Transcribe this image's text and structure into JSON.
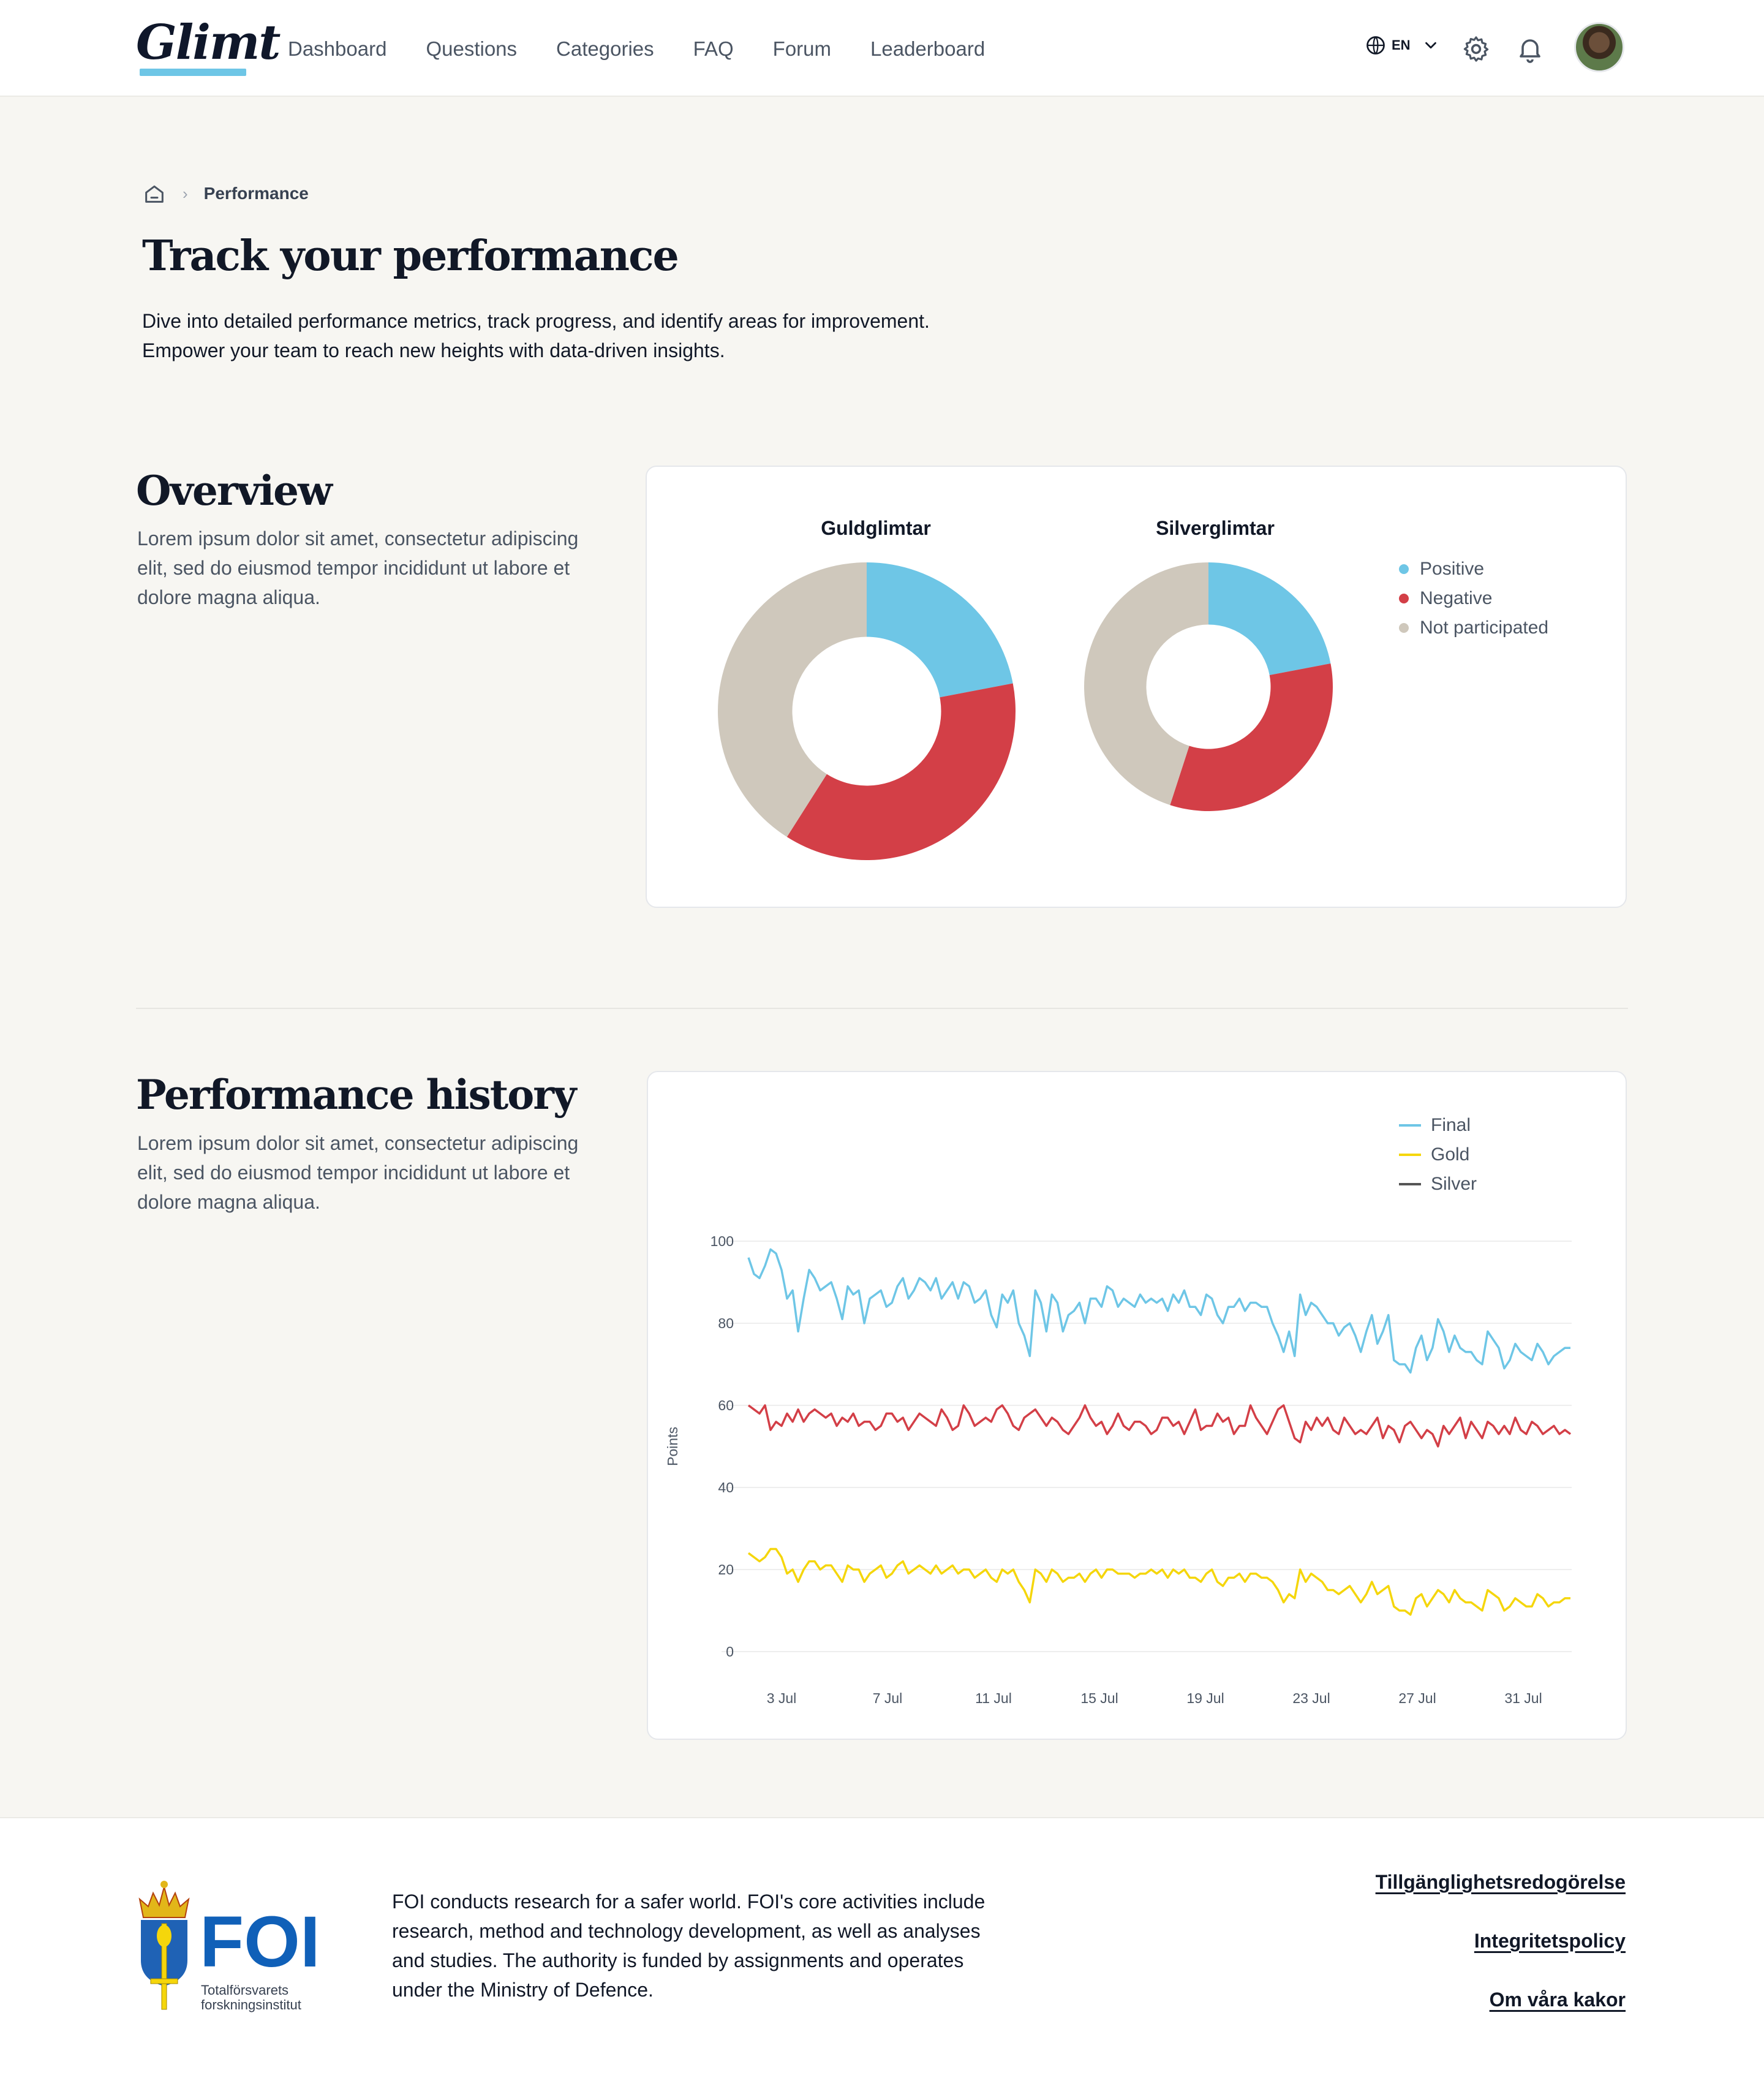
{
  "header": {
    "logo": "Glimt",
    "nav": [
      "Dashboard",
      "Questions",
      "Categories",
      "FAQ",
      "Forum",
      "Leaderboard"
    ],
    "language": "EN",
    "icons": [
      "globe-icon",
      "chevron-down-icon",
      "gear-icon",
      "bell-icon",
      "avatar"
    ]
  },
  "breadcrumb": {
    "current": "Performance"
  },
  "intro": {
    "title": "Track your performance",
    "description": "Dive into detailed performance metrics, track progress, and identify areas for improvement. Empower your team to reach new heights with data-driven insights."
  },
  "overview": {
    "title": "Overview",
    "description": "Lorem ipsum dolor sit amet, consectetur adipiscing elit, sed do eiusmod tempor incididunt ut labore et dolore magna aliqua."
  },
  "history": {
    "title": "Performance history",
    "description": "Lorem ipsum dolor sit amet, consectetur adipiscing elit, sed do eiusmod tempor incididunt ut labore et dolore magna aliqua."
  },
  "colors": {
    "positive": "#6ec6e6",
    "negative": "#d33f47",
    "not_participated": "#cfc8bc",
    "final": "#6ec6e6",
    "gold": "#f5d60b",
    "silver": "#d33f47"
  },
  "chart_data": [
    {
      "type": "pie",
      "title": "Guldglimtar",
      "categories": [
        "Positive",
        "Negative",
        "Not participated"
      ],
      "values": [
        22,
        37,
        41
      ],
      "legend_position": "right"
    },
    {
      "type": "pie",
      "title": "Silverglimtar",
      "categories": [
        "Positive",
        "Negative",
        "Not participated"
      ],
      "values": [
        22,
        33,
        45
      ],
      "legend_position": "right"
    },
    {
      "type": "line",
      "title": "",
      "xlabel": "",
      "ylabel": "Points",
      "ylim": [
        0,
        100
      ],
      "yticks": [
        0,
        20,
        40,
        60,
        80,
        100
      ],
      "xticks": [
        "3 Jul",
        "7 Jul",
        "11 Jul",
        "15 Jul",
        "19 Jul",
        "23 Jul",
        "27 Jul",
        "31 Jul"
      ],
      "grid": true,
      "legend_position": "top-right",
      "series": [
        {
          "name": "Final",
          "values": [
            96,
            92,
            91,
            94,
            98,
            97,
            93,
            86,
            88,
            78,
            86,
            93,
            91,
            88,
            89,
            90,
            86,
            81,
            89,
            87,
            88,
            80,
            86,
            87,
            88,
            84,
            85,
            89,
            91,
            86,
            88,
            91,
            90,
            88,
            91,
            86,
            88,
            90,
            86,
            90,
            89,
            85,
            86,
            88,
            82,
            79,
            87,
            85,
            88,
            80,
            77,
            72,
            88,
            85,
            78,
            87,
            85,
            78,
            82,
            83,
            85,
            80,
            86,
            86,
            84,
            89,
            88,
            84,
            86,
            85,
            84,
            87,
            85,
            86,
            85,
            86,
            83,
            87,
            85,
            88,
            84,
            84,
            82,
            87,
            86,
            82,
            80,
            84,
            84,
            86,
            83,
            85,
            85,
            84,
            84,
            80,
            77,
            73,
            78,
            72,
            87,
            82,
            85,
            84,
            82,
            80,
            80,
            77,
            79,
            80,
            77,
            73,
            78,
            82,
            75,
            78,
            82,
            71,
            70,
            70,
            68,
            74,
            77,
            71,
            74,
            81,
            78,
            73,
            77,
            74,
            73,
            73,
            71,
            70,
            78,
            76,
            74,
            69,
            71,
            75,
            73,
            72,
            71,
            75,
            73,
            70,
            72,
            73,
            74,
            74
          ]
        },
        {
          "name": "Silver",
          "values": [
            60,
            59,
            58,
            60,
            54,
            56,
            55,
            58,
            56,
            59,
            56,
            58,
            59,
            58,
            57,
            58,
            55,
            57,
            56,
            58,
            55,
            56,
            56,
            54,
            55,
            58,
            58,
            56,
            57,
            54,
            56,
            58,
            57,
            56,
            55,
            59,
            57,
            54,
            55,
            60,
            58,
            55,
            56,
            57,
            56,
            59,
            60,
            58,
            55,
            54,
            57,
            58,
            59,
            57,
            55,
            57,
            56,
            54,
            53,
            55,
            57,
            60,
            57,
            55,
            56,
            53,
            55,
            58,
            55,
            54,
            56,
            56,
            55,
            53,
            54,
            57,
            57,
            55,
            56,
            53,
            56,
            59,
            54,
            55,
            55,
            58,
            56,
            57,
            53,
            55,
            55,
            60,
            57,
            55,
            53,
            56,
            59,
            60,
            56,
            52,
            51,
            56,
            54,
            57,
            55,
            57,
            54,
            53,
            57,
            55,
            53,
            54,
            53,
            55,
            57,
            52,
            55,
            54,
            51,
            55,
            56,
            54,
            52,
            54,
            53,
            50,
            55,
            53,
            55,
            57,
            52,
            56,
            54,
            52,
            56,
            55,
            53,
            55,
            53,
            57,
            54,
            53,
            56,
            55,
            53,
            54,
            55,
            53,
            54,
            53
          ]
        },
        {
          "name": "Gold",
          "values": [
            24,
            23,
            22,
            23,
            25,
            25,
            23,
            19,
            20,
            17,
            20,
            22,
            22,
            20,
            21,
            21,
            19,
            17,
            21,
            20,
            20,
            17,
            19,
            20,
            21,
            18,
            19,
            21,
            22,
            19,
            20,
            21,
            20,
            19,
            21,
            19,
            20,
            21,
            19,
            20,
            20,
            18,
            19,
            20,
            18,
            17,
            20,
            19,
            20,
            17,
            15,
            12,
            20,
            19,
            17,
            20,
            19,
            17,
            18,
            18,
            19,
            17,
            19,
            20,
            18,
            20,
            20,
            19,
            19,
            19,
            18,
            19,
            19,
            20,
            19,
            20,
            18,
            20,
            19,
            20,
            18,
            18,
            17,
            19,
            20,
            17,
            16,
            18,
            18,
            19,
            17,
            19,
            19,
            18,
            18,
            17,
            15,
            12,
            14,
            13,
            20,
            17,
            19,
            18,
            17,
            15,
            15,
            14,
            15,
            16,
            14,
            12,
            14,
            17,
            14,
            15,
            16,
            11,
            10,
            10,
            9,
            13,
            14,
            11,
            13,
            15,
            14,
            12,
            15,
            13,
            12,
            12,
            11,
            10,
            15,
            14,
            13,
            10,
            11,
            13,
            12,
            11,
            11,
            14,
            13,
            11,
            12,
            12,
            13,
            13
          ]
        }
      ]
    }
  ],
  "footer": {
    "logo_text": "FOI",
    "logo_subtitle": "Totalförsvarets forskningsinstitut",
    "text": "FOI conducts research for a safer world. FOI's core activities include research, method and technology development, as well as analyses and studies. The authority is funded by assignments and operates under the Ministry of Defence.",
    "links": [
      "Tillgänglighetsredogörelse",
      "Integritetspolicy",
      "Om våra kakor"
    ]
  }
}
